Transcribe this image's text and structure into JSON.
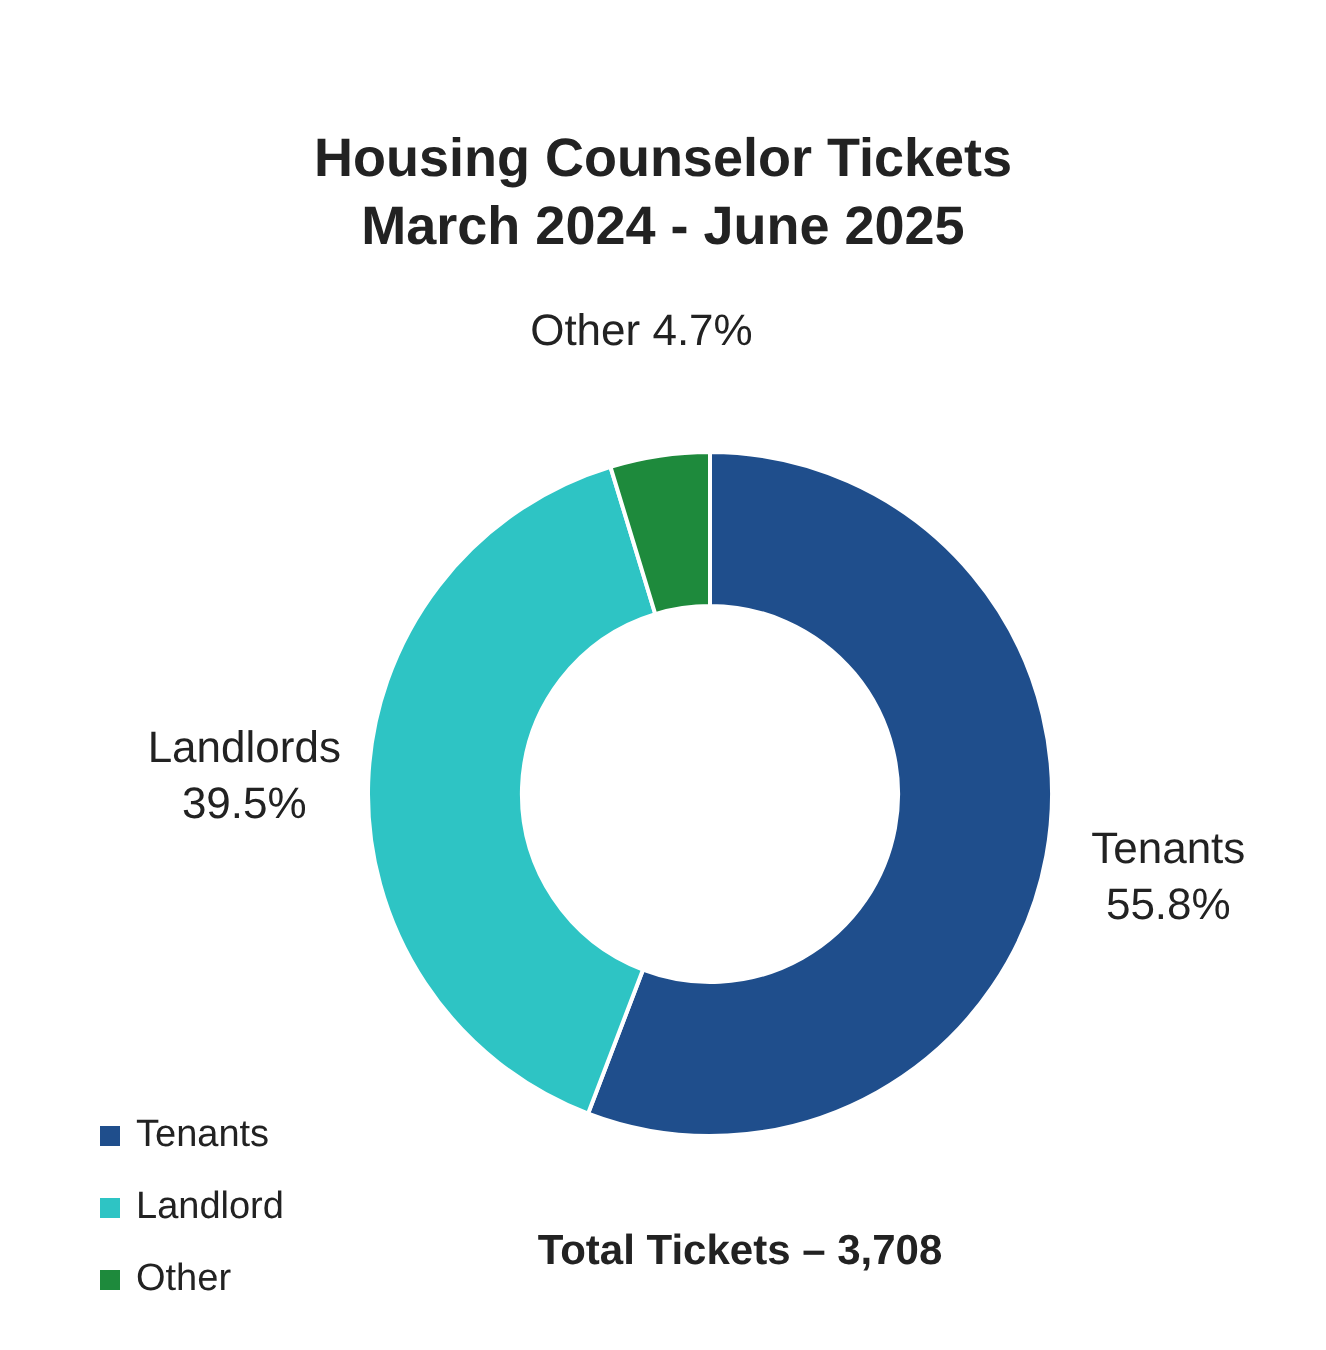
{
  "chart_data": {
    "type": "donut",
    "title": "Housing Counselor Tickets\nMarch 2024 - June 2025",
    "categories": [
      "Tenants",
      "Landlord",
      "Other"
    ],
    "values": [
      55.8,
      39.5,
      4.7
    ],
    "colors": [
      "#1f4e8c",
      "#2ec4c4",
      "#1e8a3c"
    ],
    "value_labels": [
      "Tenants\n55.8%",
      "Landlords\n39.5%",
      "Other 4.7%"
    ],
    "legend": "bottom left",
    "annotations": [
      "Total Tickets – 3,708"
    ]
  }
}
